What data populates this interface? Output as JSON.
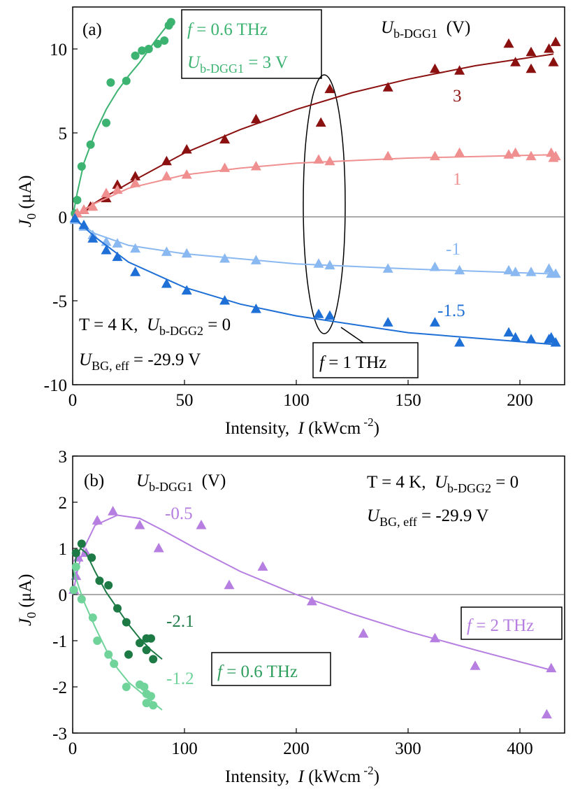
{
  "chart_data": [
    {
      "type": "scatter",
      "xlim": [
        0,
        220
      ],
      "ylim": [
        -10,
        12.5
      ],
      "xticks": [
        0,
        50,
        100,
        150,
        200
      ],
      "yticks": [
        -10,
        -5,
        0,
        5,
        10
      ],
      "x_label": [
        "Intensity,  ",
        "I",
        " (kWcm",
        " -2",
        ")"
      ],
      "y_label": [
        "J",
        "0",
        " (μA)"
      ],
      "annotations": [
        [
          "(a)"
        ],
        [
          "f",
          " = 0.6 THz"
        ],
        [
          "U",
          "b-DGG1",
          " = 3 V"
        ],
        [
          "U",
          "b-DGG1",
          "  (V)"
        ],
        [
          "T",
          " = 4 K,  ",
          "U",
          "b-DGG2",
          " = 0"
        ],
        [
          "U",
          "BG, eff",
          " = -29.9 V"
        ],
        [
          "f",
          " = 1 THz"
        ]
      ],
      "series": [
        {
          "color": "#3cb371",
          "marker": "circle",
          "x": [
            1,
            2,
            4,
            8,
            15,
            17,
            24,
            28,
            31,
            34,
            38,
            41,
            43,
            44
          ],
          "values": [
            0.2,
            1.0,
            3.0,
            4.3,
            5.6,
            8.0,
            8.1,
            9.6,
            9.9,
            10.0,
            10.3,
            10.5,
            11.4,
            11.6
          ],
          "fit": {
            "x": [
              0,
              2,
              5,
              10,
              15,
              20,
              25,
              30,
              37,
              44
            ],
            "values": [
              0,
              1.4,
              3.2,
              5.0,
              6.4,
              7.5,
              8.4,
              9.2,
              10.5,
              11.7
            ]
          }
        },
        {
          "name": "3",
          "color": "#8b1010",
          "marker": "triangle",
          "x": [
            2,
            5,
            8,
            15,
            20,
            28,
            42,
            51,
            68,
            82,
            111,
            115,
            141,
            162,
            173,
            195,
            198,
            205,
            205,
            213,
            215,
            216
          ],
          "values": [
            0.2,
            0.4,
            0.6,
            1.1,
            1.9,
            2.4,
            3.3,
            4.0,
            4.6,
            5.8,
            5.6,
            7.6,
            7.7,
            8.8,
            8.7,
            10.3,
            9.2,
            9.8,
            8.8,
            10.0,
            9.2,
            10.4
          ],
          "fit": {
            "x": [
              0,
              12,
              25,
              50,
              75,
              100,
              125,
              150,
              180,
              215
            ],
            "values": [
              0,
              1.0,
              2.0,
              3.8,
              5.2,
              6.4,
              7.4,
              8.2,
              9.0,
              9.7
            ]
          }
        },
        {
          "name": "1",
          "color": "#f08f8f",
          "marker": "triangle",
          "x": [
            2,
            5,
            9,
            15,
            20,
            28,
            42,
            51,
            68,
            82,
            110,
            115,
            141,
            162,
            173,
            195,
            198,
            205,
            214,
            215,
            216
          ],
          "values": [
            0.2,
            0.4,
            0.6,
            1.4,
            1.6,
            2.0,
            2.4,
            2.5,
            2.9,
            3.0,
            3.4,
            3.3,
            3.6,
            3.6,
            3.8,
            3.7,
            3.8,
            3.6,
            3.8,
            3.5,
            3.6
          ],
          "fit": {
            "x": [
              0,
              5,
              10,
              25,
              50,
              75,
              100,
              150,
              215
            ],
            "values": [
              0,
              0.4,
              0.8,
              1.7,
              2.5,
              2.9,
              3.2,
              3.5,
              3.7
            ]
          }
        },
        {
          "name": "-1",
          "color": "#8ab8f0",
          "marker": "triangle",
          "x": [
            1,
            5,
            9,
            15,
            20,
            28,
            42,
            51,
            68,
            82,
            110,
            115,
            141,
            162,
            173,
            195,
            198,
            205,
            213,
            214,
            216
          ],
          "values": [
            -0.2,
            -0.6,
            -1.1,
            -1.5,
            -1.6,
            -1.9,
            -2.1,
            -2.2,
            -2.5,
            -2.6,
            -2.8,
            -2.9,
            -3.1,
            -3.0,
            -3.2,
            -3.2,
            -3.3,
            -3.3,
            -3.1,
            -3.4,
            -3.4
          ],
          "fit": {
            "x": [
              0,
              5,
              10,
              25,
              50,
              75,
              100,
              150,
              215
            ],
            "values": [
              0,
              -0.55,
              -1.0,
              -1.7,
              -2.2,
              -2.5,
              -2.8,
              -3.1,
              -3.4
            ]
          }
        },
        {
          "name": "-1.5",
          "color": "#1e6fd6",
          "marker": "triangle",
          "x": [
            1,
            5,
            9,
            15,
            20,
            28,
            42,
            51,
            68,
            82,
            110,
            115,
            141,
            162,
            173,
            195,
            198,
            205,
            213,
            214,
            216
          ],
          "values": [
            -0.1,
            -0.5,
            -1.3,
            -2.0,
            -2.4,
            -3.3,
            -4.0,
            -4.4,
            -5.0,
            -5.5,
            -5.8,
            -5.9,
            -6.3,
            -6.3,
            -7.5,
            -6.9,
            -7.2,
            -7.3,
            -7.3,
            -7.2,
            -7.5
          ],
          "fit": {
            "x": [
              0,
              5,
              10,
              25,
              50,
              75,
              100,
              150,
              215
            ],
            "values": [
              0,
              -0.6,
              -1.2,
              -2.7,
              -4.2,
              -5.2,
              -5.9,
              -6.9,
              -7.6
            ]
          }
        }
      ]
    },
    {
      "type": "scatter",
      "xlim": [
        0,
        440
      ],
      "ylim": [
        -3,
        3
      ],
      "xticks": [
        0,
        100,
        200,
        300,
        400
      ],
      "yticks": [
        -3,
        -2,
        -1,
        0,
        1,
        2,
        3
      ],
      "x_label": [
        "Intensity,  ",
        "I",
        " (kWcm",
        " -2",
        ")"
      ],
      "y_label": [
        "J",
        "0",
        " (μA)"
      ],
      "annotations": [
        [
          "(b)"
        ],
        [
          "U",
          "b-DGG1",
          "  (V)"
        ],
        [
          "T",
          " = 4 K,  ",
          "U",
          "b-DGG2",
          " = 0"
        ],
        [
          "U",
          "BG, eff",
          " = -29.9 V"
        ],
        [
          "f",
          " = 2 THz"
        ],
        [
          "f",
          " = 0.6 THz"
        ]
      ],
      "series": [
        {
          "name": "-0.5",
          "color": "#b57ee0",
          "marker": "triangle",
          "x": [
            1,
            3,
            5,
            12,
            22,
            36,
            60,
            77,
            115,
            140,
            170,
            214,
            260,
            324,
            360,
            424,
            428
          ],
          "values": [
            0.1,
            0.4,
            0.8,
            0.9,
            1.6,
            1.8,
            1.5,
            1.0,
            1.5,
            0.2,
            0.6,
            -0.15,
            -0.85,
            -0.95,
            -1.55,
            -2.6,
            -1.6
          ],
          "fit": {
            "x": [
              0,
              5,
              10,
              20,
              40,
              60,
              80,
              110,
              150,
              200,
              250,
              300,
              360,
              430
            ],
            "values": [
              0,
              0.6,
              1.0,
              1.5,
              1.72,
              1.65,
              1.4,
              1.0,
              0.5,
              0.0,
              -0.42,
              -0.8,
              -1.2,
              -1.65
            ]
          }
        },
        {
          "name": "-2.1",
          "color": "#1e7a45",
          "marker": "circle",
          "x": [
            1,
            3,
            8,
            17,
            24,
            32,
            40,
            48,
            50,
            60,
            66,
            70,
            72,
            66
          ],
          "values": [
            0.1,
            0.9,
            1.1,
            0.8,
            0.3,
            0.2,
            -0.3,
            -0.6,
            -1.3,
            -1.05,
            -0.95,
            -0.95,
            -1.4,
            -1.2
          ],
          "fit": {
            "x": [
              0,
              3,
              7,
              12,
              20,
              30,
              40,
              50,
              60,
              70,
              80
            ],
            "values": [
              0.3,
              0.8,
              1.0,
              0.9,
              0.5,
              0.05,
              -0.3,
              -0.65,
              -0.95,
              -1.2,
              -1.4
            ]
          }
        },
        {
          "name": "-1.2",
          "color": "#6fd39a",
          "marker": "circle",
          "x": [
            1,
            3,
            8,
            18,
            22,
            32,
            37,
            48,
            60,
            64,
            66,
            70,
            66,
            72
          ],
          "values": [
            0.1,
            0.6,
            -0.1,
            -0.5,
            -1.0,
            -1.3,
            -1.5,
            -2.0,
            -1.95,
            -2.0,
            -2.15,
            -2.2,
            -2.35,
            -2.4
          ],
          "fit": {
            "x": [
              0,
              5,
              10,
              20,
              30,
              40,
              50,
              60,
              70,
              80
            ],
            "values": [
              0.6,
              0.2,
              -0.15,
              -0.7,
              -1.2,
              -1.6,
              -1.9,
              -2.1,
              -2.3,
              -2.5
            ]
          }
        }
      ]
    }
  ]
}
